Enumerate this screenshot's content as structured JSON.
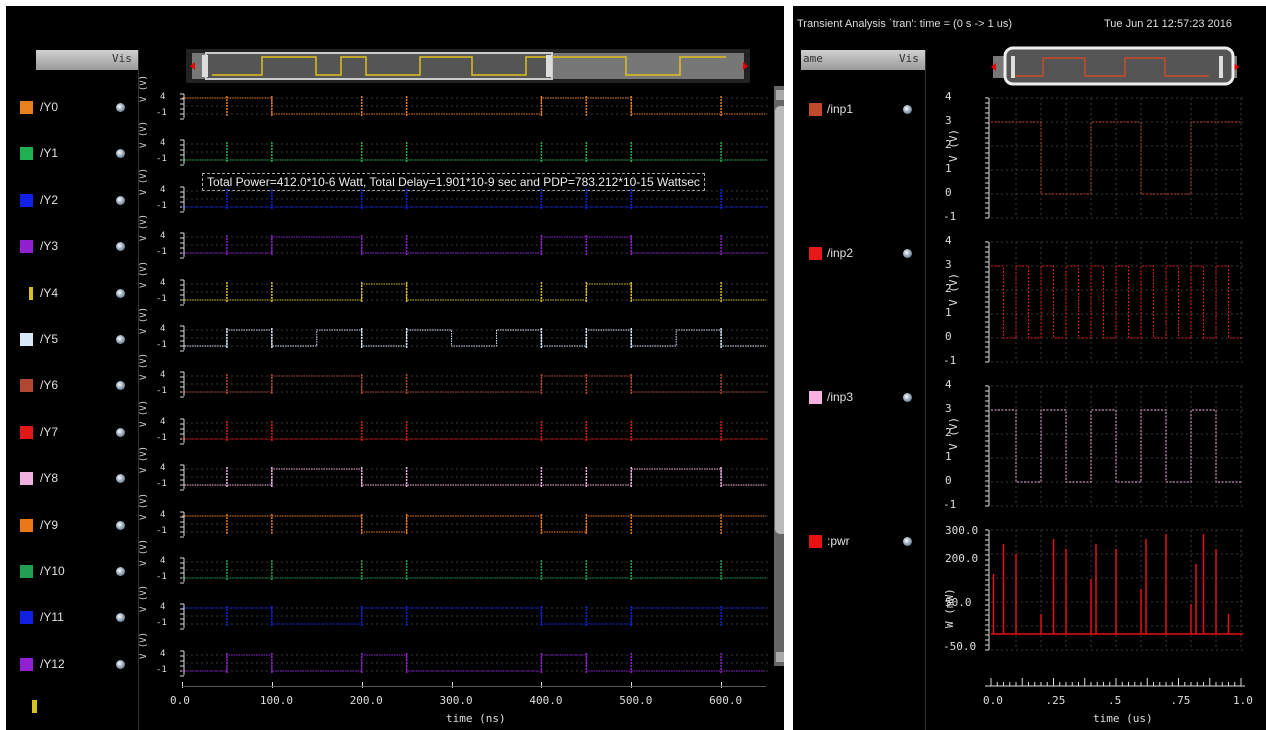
{
  "left": {
    "header_vis": "Vis",
    "signals": [
      {
        "name": "/Y0",
        "color": "#e8801e"
      },
      {
        "name": "/Y1",
        "color": "#20b050"
      },
      {
        "name": "/Y2",
        "color": "#1020e8"
      },
      {
        "name": "/Y3",
        "color": "#9020d0"
      },
      {
        "name": "/Y4",
        "color": "#d8c020"
      },
      {
        "name": "/Y5",
        "color": "#d8e8f8"
      },
      {
        "name": "/Y6",
        "color": "#b04830"
      },
      {
        "name": "/Y7",
        "color": "#e01818"
      },
      {
        "name": "/Y8",
        "color": "#f0b0e0"
      },
      {
        "name": "/Y9",
        "color": "#e87818"
      },
      {
        "name": "/Y10",
        "color": "#20a050"
      },
      {
        "name": "/Y11",
        "color": "#1020e0"
      },
      {
        "name": "/Y12",
        "color": "#9020d0"
      }
    ],
    "row_ticks": [
      "4",
      "-1"
    ],
    "y_axis_label": "V (V)",
    "x_ticks": [
      "0.0",
      "100.0",
      "200.0",
      "300.0",
      "400.0",
      "500.0",
      "600.0"
    ],
    "x_label": "time (ns)",
    "annotation": "Total Power=412.0*10-6 Watt, Total Delay=1.901*10-9 sec and PDP=783.212*10-15 Wattsec"
  },
  "right": {
    "title": "Transient Analysis `tran': time = (0 s -> 1 us)",
    "timestamp": "Tue Jun 21 12:57:23 2016",
    "header_name": "ame",
    "header_vis": "Vis",
    "signals": [
      {
        "name": "/inp1",
        "color": "#c04a2a"
      },
      {
        "name": "/inp2",
        "color": "#e81818"
      },
      {
        "name": "/inp3",
        "color": "#f8b0e0"
      },
      {
        "name": ":pwr",
        "color": "#e81010"
      }
    ],
    "volt_ticks": [
      "4",
      "3",
      "2",
      "1",
      "0",
      "-1"
    ],
    "volt_label": "V (V)",
    "pwr_ticks": [
      "300.0",
      "200.0",
      "50.0",
      "-50.0"
    ],
    "pwr_label": "W (mW)",
    "x_ticks": [
      "0.0",
      ".25",
      ".5",
      ".75",
      "1.0"
    ],
    "x_label": "time (us)"
  },
  "colors": {
    "background": "#000000",
    "grid": "#383838"
  }
}
